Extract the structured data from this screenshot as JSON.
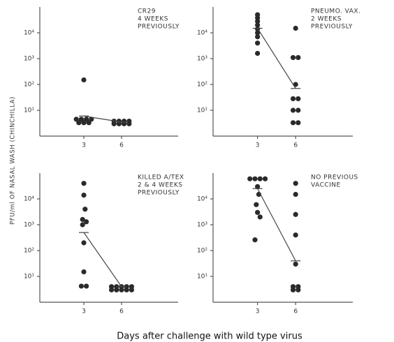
{
  "y_label": "PFU/ml OF NASAL WASH (CHINCHILLA)",
  "x_label": "Days after challenge with wild type virus",
  "chart_data": [
    {
      "type": "scatter",
      "annotation": [
        "CR29",
        "4 WEEKS",
        "PREVIOUSLY"
      ],
      "log_scale": true,
      "color": "#2a2a2a",
      "xlim": [
        -0.5,
        10.5
      ],
      "xticks": [
        3,
        6
      ],
      "ylim": [
        1,
        100000
      ],
      "yticks": [
        {
          "value": 10,
          "label": "10¹"
        },
        {
          "value": 100,
          "label": "10²"
        },
        {
          "value": 1000,
          "label": "10³"
        },
        {
          "value": 10000,
          "label": "10⁴"
        }
      ],
      "points": {
        "x": [
          3.0,
          2.4,
          2.8,
          3.2,
          3.6,
          2.6,
          3.0,
          3.4
        ],
        "y": [
          150,
          4.5,
          4.5,
          4.5,
          4.5,
          3.3,
          3.3,
          3.3
        ]
      },
      "points2": {
        "x": [
          5.4,
          5.8,
          6.2,
          6.6,
          5.4,
          5.8,
          6.2,
          6.6
        ],
        "y": [
          3.8,
          3.8,
          3.8,
          3.8,
          3,
          3,
          3,
          3
        ]
      },
      "mean": {
        "x": [
          3,
          6
        ],
        "y": [
          6,
          3.5
        ]
      }
    },
    {
      "type": "scatter",
      "annotation": [
        "PNEUMO. VAX.",
        "2 WEEKS",
        "PREVIOUSLY"
      ],
      "log_scale": true,
      "color": "#2a2a2a",
      "xlim": [
        -0.5,
        10.5
      ],
      "xticks": [
        3,
        6
      ],
      "ylim": [
        1,
        100000
      ],
      "yticks": [
        {
          "value": 10,
          "label": "10¹"
        },
        {
          "value": 100,
          "label": "10²"
        },
        {
          "value": 1000,
          "label": "10³"
        },
        {
          "value": 10000,
          "label": "10⁴"
        }
      ],
      "points": {
        "x": [
          3,
          3,
          3,
          3,
          3,
          3,
          3,
          3,
          3
        ],
        "y": [
          50000,
          38000,
          28000,
          20000,
          14000,
          10000,
          7000,
          4000,
          1600
        ]
      },
      "points2": {
        "x": [
          6,
          5.8,
          6.2,
          6,
          5.8,
          6.2,
          5.8,
          6.2,
          5.8,
          6.2
        ],
        "y": [
          15000,
          1100,
          1100,
          100,
          28,
          28,
          10,
          10,
          3.3,
          3.3
        ]
      },
      "mean": {
        "x": [
          3,
          6
        ],
        "y": [
          15000,
          70
        ]
      }
    },
    {
      "type": "scatter",
      "annotation": [
        "KILLED A/TEX",
        "2 & 4 WEEKS",
        "PREVIOUSLY"
      ],
      "log_scale": true,
      "color": "#2a2a2a",
      "xlim": [
        -0.5,
        10.5
      ],
      "xticks": [
        3,
        6
      ],
      "ylim": [
        1,
        100000
      ],
      "yticks": [
        {
          "value": 10,
          "label": "10¹"
        },
        {
          "value": 100,
          "label": "10²"
        },
        {
          "value": 1000,
          "label": "10³"
        },
        {
          "value": 10000,
          "label": "10⁴"
        }
      ],
      "points": {
        "x": [
          3,
          3,
          3.1,
          2.9,
          3.2,
          2.9,
          3,
          3,
          2.8,
          3.2
        ],
        "y": [
          40000,
          14000,
          4000,
          1600,
          1300,
          1000,
          200,
          15,
          4.2,
          4.2
        ]
      },
      "points2": {
        "x": [
          5.2,
          5.6,
          6.0,
          6.4,
          6.8,
          5.2,
          5.6,
          6.0,
          6.4,
          6.8
        ],
        "y": [
          4,
          4,
          4,
          4,
          4,
          3,
          3,
          3,
          3,
          3
        ]
      },
      "mean": {
        "x": [
          3,
          6
        ],
        "y": [
          500,
          4
        ]
      }
    },
    {
      "type": "scatter",
      "annotation": [
        "NO PREVIOUS",
        "VACCINE"
      ],
      "log_scale": true,
      "color": "#2a2a2a",
      "xlim": [
        -0.5,
        10.5
      ],
      "xticks": [
        3,
        6
      ],
      "ylim": [
        1,
        100000
      ],
      "yticks": [
        {
          "value": 10,
          "label": "10¹"
        },
        {
          "value": 100,
          "label": "10²"
        },
        {
          "value": 1000,
          "label": "10³"
        },
        {
          "value": 10000,
          "label": "10⁴"
        }
      ],
      "points": {
        "x": [
          2.4,
          2.8,
          3.2,
          3.6,
          3.0,
          3.1,
          2.9,
          3.0,
          3.2,
          2.8
        ],
        "y": [
          60000,
          60000,
          60000,
          60000,
          30000,
          15000,
          6000,
          3000,
          2000,
          260
        ]
      },
      "points2": {
        "x": [
          6,
          6,
          6,
          6,
          6,
          5.8,
          6.2,
          5.8,
          6.2
        ],
        "y": [
          40000,
          15000,
          2500,
          400,
          30,
          4,
          4,
          3,
          3
        ]
      },
      "mean": {
        "x": [
          3,
          6
        ],
        "y": [
          25000,
          40
        ]
      }
    }
  ]
}
